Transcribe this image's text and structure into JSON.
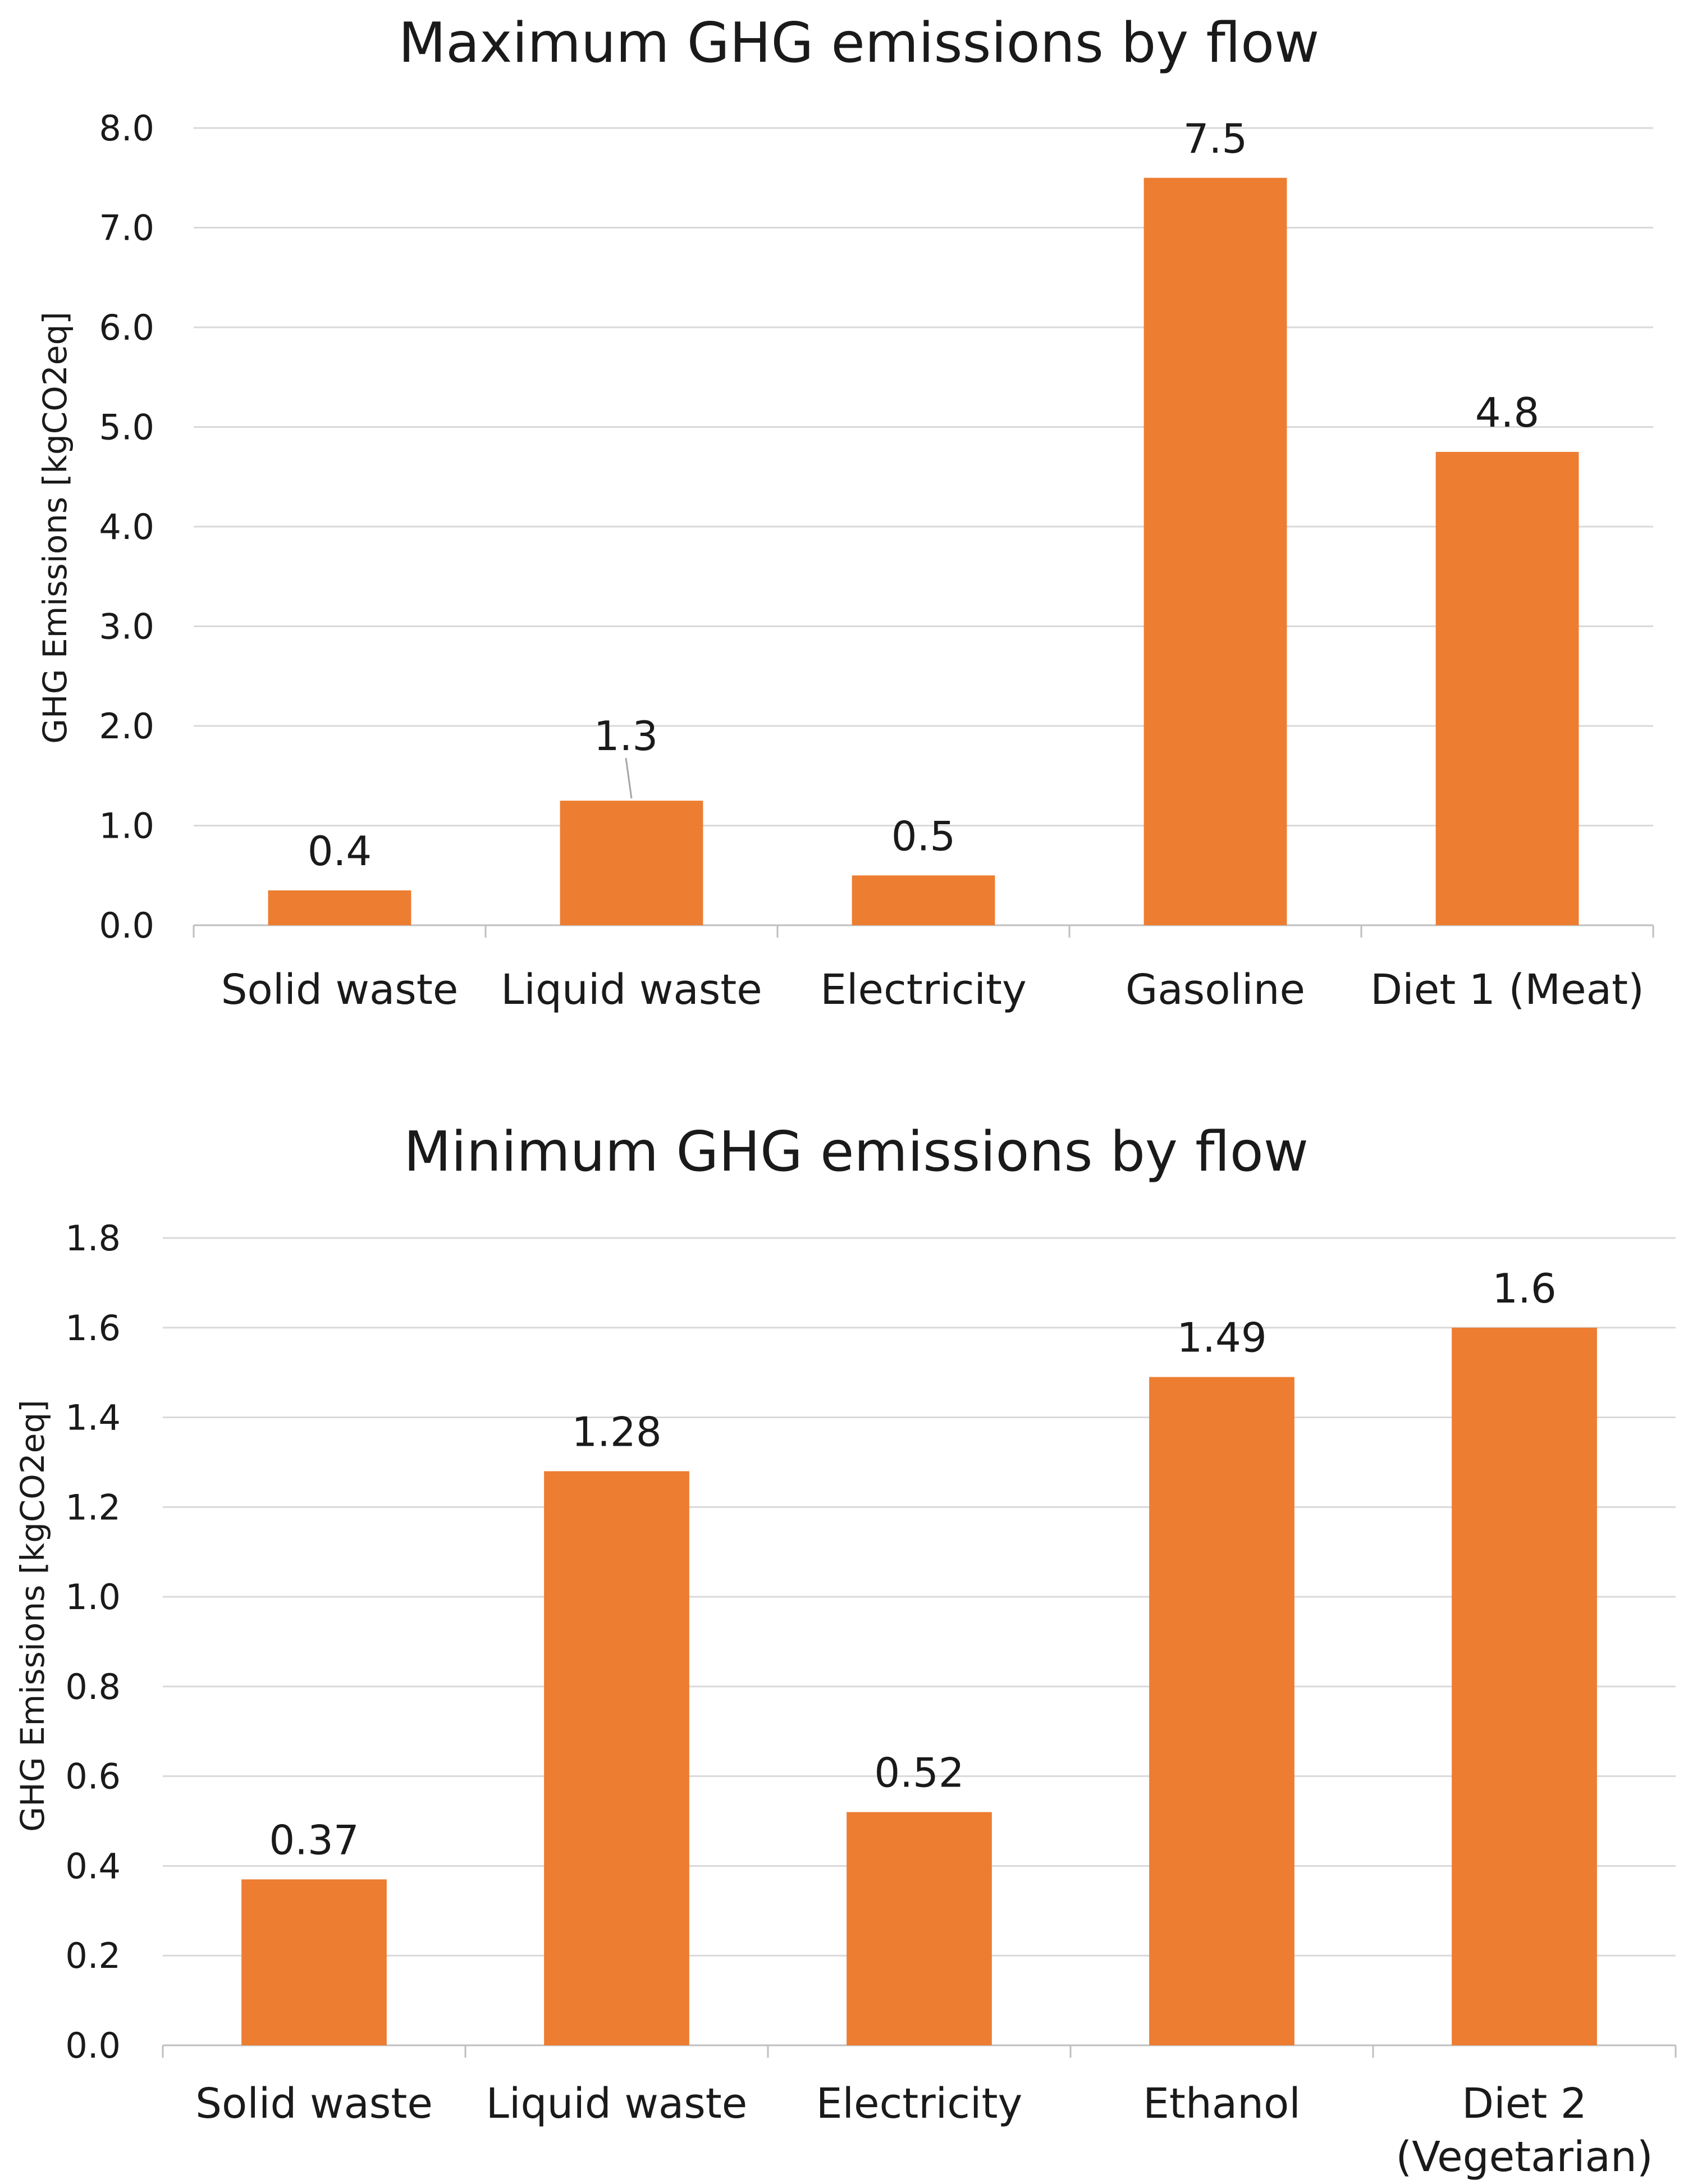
{
  "chart_data": [
    {
      "type": "bar",
      "title": "Maximum GHG emissions by flow",
      "xlabel": "",
      "ylabel": "GHG Emissions [kgCO2eq]",
      "categories": [
        [
          "Solid waste"
        ],
        [
          "Liquid waste"
        ],
        [
          "Electricity"
        ],
        [
          "Gasoline"
        ],
        [
          "Diet 1 (Meat)"
        ]
      ],
      "values": [
        0.35,
        1.25,
        0.5,
        7.5,
        4.75
      ],
      "data_labels": [
        "0.4",
        "1.3",
        "0.5",
        "7.5",
        "4.8"
      ],
      "ylim": [
        0,
        8
      ],
      "yticks": [
        0,
        1,
        2,
        3,
        4,
        5,
        6,
        7,
        8
      ],
      "ytick_labels": [
        "0.0",
        "1.0",
        "2.0",
        "3.0",
        "4.0",
        "5.0",
        "6.0",
        "7.0",
        "8.0"
      ],
      "grid": true,
      "bar_color": "#ED7D31"
    },
    {
      "type": "bar",
      "title": "Minimum GHG emissions by flow",
      "xlabel": "",
      "ylabel": "GHG Emissions [kgCO2eq]",
      "categories": [
        [
          "Solid waste"
        ],
        [
          "Liquid waste"
        ],
        [
          "Electricity"
        ],
        [
          "Ethanol"
        ],
        [
          "Diet 2",
          "(Vegetarian)"
        ]
      ],
      "values": [
        0.37,
        1.28,
        0.52,
        1.49,
        1.6
      ],
      "data_labels": [
        "0.37",
        "1.28",
        "0.52",
        "1.49",
        "1.6"
      ],
      "ylim": [
        0,
        1.8
      ],
      "yticks": [
        0,
        0.2,
        0.4,
        0.6,
        0.8,
        1.0,
        1.2,
        1.4,
        1.6,
        1.8
      ],
      "ytick_labels": [
        "0.0",
        "0.2",
        "0.4",
        "0.6",
        "0.8",
        "1.0",
        "1.2",
        "1.4",
        "1.6",
        "1.8"
      ],
      "grid": true,
      "bar_color": "#ED7D31"
    }
  ]
}
